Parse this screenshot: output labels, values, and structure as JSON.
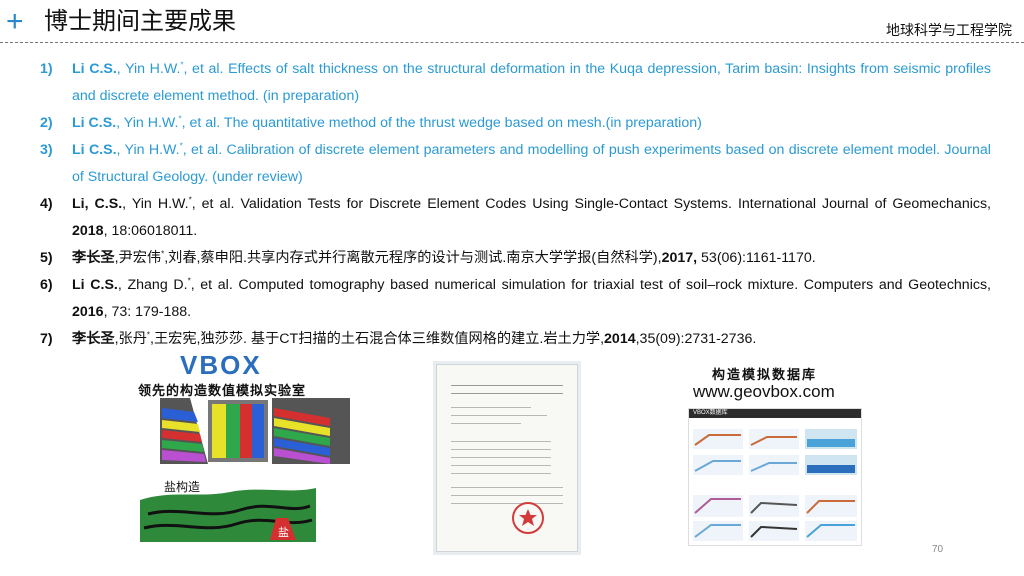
{
  "header": {
    "plus_glyph": "+",
    "title": "博士期间主要成果",
    "school": "地球科学与工程学院"
  },
  "refs": [
    {
      "num": "1)",
      "author": "Li C.S.",
      "text": ", Yin H.W.*, et al. Effects of salt thickness on the structural deformation in the Kuqa depression, Tarim basin: Insights from seismic profiles and discrete element method. (in preparation)"
    },
    {
      "num": "2)",
      "author": "Li C.S.",
      "text": ", Yin H.W.*, et al. The quantitative method of the thrust wedge based on mesh.(in preparation)"
    },
    {
      "num": "3)",
      "author": "Li C.S.",
      "text": ", Yin H.W.*, et al. Calibration of discrete element parameters and modelling of push experiments based on discrete element model. Journal of Structural Geology. (under review)"
    },
    {
      "num": "4)",
      "author": "Li, C.S.",
      "text_a": ", Yin H.W.*, et al. Validation Tests for Discrete Element Codes Using Single-Contact Systems. International Journal of Geomechanics, ",
      "year": "2018",
      "text_b": ", 18:06018011."
    },
    {
      "num": "5)",
      "author": "李长圣",
      "text_a": ",尹宏伟*,刘春,蔡申阳.共享内存式并行离散元程序的设计与测试.南京大学学报(自然科学),",
      "year": "2017,",
      "text_b": " 53(06):1161-1170."
    },
    {
      "num": "6)",
      "author": "Li C.S.",
      "text_a": ", Zhang D.*, et al. Computed tomography based numerical simulation for triaxial test of soil–rock mixture. Computers and Geotechnics, ",
      "year": "2016",
      "text_b": ", 73: 179-188."
    },
    {
      "num": "7)",
      "author": "李长圣",
      "text_a": ",张丹*,王宏宪,独莎莎. 基于CT扫描的土石混合体三维数值网格的建立.岩土力学,",
      "year": "2014",
      "text_b": ",35(09):2731-2736."
    }
  ],
  "figures": {
    "vbox_logo": "VBOX",
    "vbox_slogan": "领先的构造数值模拟实验室",
    "salt_label": "盐构造",
    "salt_mark": "盐",
    "db_title": "构造模拟数据库",
    "db_url": "www.geovbox.com",
    "web_nav": "VBOX数据库"
  },
  "page_number": "70",
  "colors": {
    "accent_blue": "#2b9ad4",
    "plus_blue": "#2a87c8"
  }
}
